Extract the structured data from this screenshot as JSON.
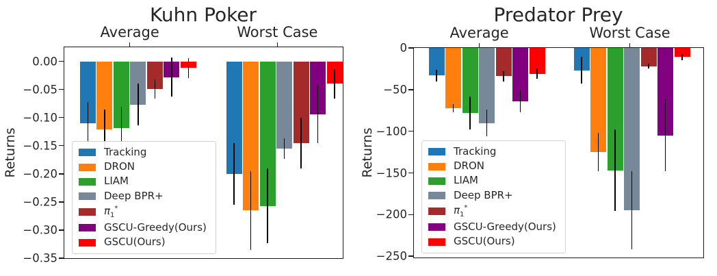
{
  "figure": {
    "background": "#ffffff"
  },
  "chart_data": [
    {
      "type": "bar",
      "title": "Kuhn Poker",
      "ylabel": "Returns",
      "group_labels": [
        "Average",
        "Worst Case"
      ],
      "ylim": [
        -0.35,
        0.025
      ],
      "grid": false,
      "legend_position": "lower-left",
      "yticks": [
        {
          "v": 0.0,
          "label": "0.00"
        },
        {
          "v": -0.05,
          "label": "−0.05"
        },
        {
          "v": -0.1,
          "label": "−0.10"
        },
        {
          "v": -0.15,
          "label": "−0.15"
        },
        {
          "v": -0.2,
          "label": "−0.20"
        },
        {
          "v": -0.25,
          "label": "−0.25"
        },
        {
          "v": -0.3,
          "label": "−0.30"
        },
        {
          "v": -0.35,
          "label": "−0.35"
        }
      ],
      "series": [
        {
          "id": "tracking",
          "label": "Tracking",
          "color": "#1f77b4",
          "values": [
            -0.11,
            -0.2
          ],
          "errors": [
            0.038,
            0.055
          ]
        },
        {
          "id": "dron",
          "label": "DRON",
          "color": "#ff7f0e",
          "values": [
            -0.121,
            -0.265
          ],
          "errors": [
            0.035,
            0.07
          ]
        },
        {
          "id": "liam",
          "label": "LIAM",
          "color": "#2ca02c",
          "values": [
            -0.119,
            -0.257
          ],
          "errors": [
            0.038,
            0.066
          ]
        },
        {
          "id": "deep-bpr",
          "label": "Deep BPR+",
          "color": "#778899",
          "values": [
            -0.077,
            -0.155
          ],
          "errors": [
            0.037,
            0.018
          ]
        },
        {
          "id": "pi-star",
          "label": "π₁*",
          "label_main": "π",
          "label_sub": "1",
          "label_sup": "*",
          "color": "#a52a2a",
          "values": [
            -0.049,
            -0.146
          ],
          "errors": [
            0.017,
            0.045
          ]
        },
        {
          "id": "gscu-greedy",
          "label": "GSCU-Greedy(Ours)",
          "color": "#800080",
          "values": [
            -0.028,
            -0.094
          ],
          "errors": [
            0.035,
            0.052
          ]
        },
        {
          "id": "gscu",
          "label": "GSCU(Ours)",
          "color": "#ff0000",
          "values": [
            -0.012,
            -0.04
          ],
          "errors": [
            0.018,
            0.026
          ]
        }
      ]
    },
    {
      "type": "bar",
      "title": "Predator Prey",
      "ylabel": "Returns",
      "group_labels": [
        "Average",
        "Worst Case"
      ],
      "ylim": [
        -251.5,
        0
      ],
      "grid": false,
      "legend_position": "lower-left",
      "yticks": [
        {
          "v": 0,
          "label": "0"
        },
        {
          "v": -50,
          "label": "−50"
        },
        {
          "v": -100,
          "label": "−100"
        },
        {
          "v": -150,
          "label": "−150"
        },
        {
          "v": -200,
          "label": "−200"
        },
        {
          "v": -250,
          "label": "−250"
        }
      ],
      "series": [
        {
          "id": "tracking",
          "label": "Tracking",
          "color": "#1f77b4",
          "values": [
            -33,
            -27
          ],
          "errors": [
            7,
            16
          ]
        },
        {
          "id": "dron",
          "label": "DRON",
          "color": "#ff7f0e",
          "values": [
            -72,
            -125
          ],
          "errors": [
            5,
            23
          ]
        },
        {
          "id": "liam",
          "label": "LIAM",
          "color": "#2ca02c",
          "values": [
            -78,
            -147
          ],
          "errors": [
            20,
            49
          ]
        },
        {
          "id": "deep-bpr",
          "label": "Deep BPR+",
          "color": "#778899",
          "values": [
            -90,
            -195
          ],
          "errors": [
            16,
            47
          ]
        },
        {
          "id": "pi-star",
          "label": "π₁*",
          "label_main": "π",
          "label_sub": "1",
          "label_sup": "*",
          "color": "#a52a2a",
          "values": [
            -34,
            -22
          ],
          "errors": [
            6,
            3
          ]
        },
        {
          "id": "gscu-greedy",
          "label": "GSCU-Greedy(Ours)",
          "color": "#800080",
          "values": [
            -64,
            -105
          ],
          "errors": [
            13,
            43
          ]
        },
        {
          "id": "gscu",
          "label": "GSCU(Ours)",
          "color": "#ff0000",
          "values": [
            -31,
            -11
          ],
          "errors": [
            6,
            4
          ]
        }
      ]
    }
  ]
}
